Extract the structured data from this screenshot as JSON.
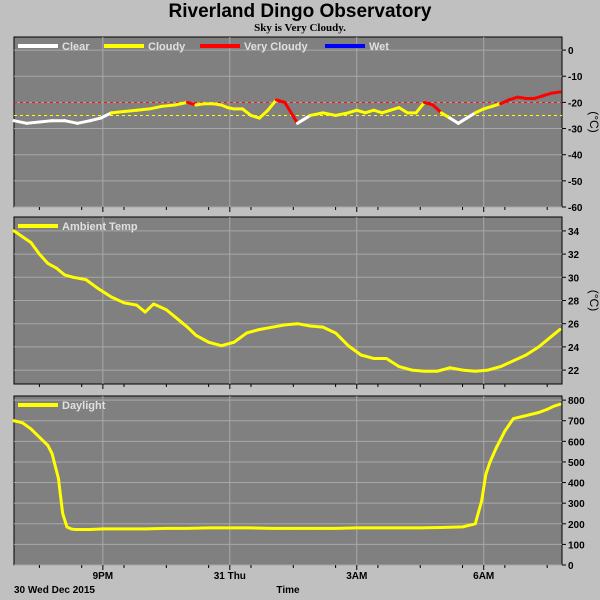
{
  "header": {
    "title": "Riverland Dingo Observatory",
    "subtitle": "Sky is Very Cloudy."
  },
  "footer": {
    "date_label": "30 Wed Dec 2015",
    "time_label": "Time"
  },
  "chart_data": [
    {
      "type": "line",
      "name": "sky",
      "ylabel": "(°C)",
      "ylim": [
        -60,
        5
      ],
      "yticks": [
        0,
        -10,
        -20,
        -30,
        -40,
        -50,
        -60
      ],
      "legend": [
        {
          "label": "Clear",
          "color": "#ffffff"
        },
        {
          "label": "Cloudy",
          "color": "#ffff00"
        },
        {
          "label": "Very Cloudy",
          "color": "#ff0000"
        },
        {
          "label": "Wet",
          "color": "#0000ff"
        }
      ],
      "legend_position": "top-left",
      "thresholds": [
        {
          "value": -20,
          "color": "#ff0000"
        },
        {
          "value": -25,
          "color": "#ffff00"
        }
      ],
      "x": [
        18.9,
        19.2,
        19.5,
        19.8,
        20.1,
        20.4,
        20.7,
        20.95,
        21.2,
        21.5,
        21.8,
        22.1,
        22.4,
        22.7,
        23.0,
        23.2,
        23.4,
        23.6,
        23.8,
        23.95,
        24.1,
        24.3,
        24.5,
        24.7,
        24.9,
        25.1,
        25.3,
        25.6,
        25.9,
        26.2,
        26.5,
        26.8,
        27.0,
        27.2,
        27.4,
        27.6,
        27.8,
        28.0,
        28.2,
        28.4,
        28.6,
        28.8,
        29.0,
        29.2,
        29.4,
        29.6,
        29.8,
        30.0,
        30.2,
        30.4,
        30.6,
        30.8,
        31.0,
        31.2,
        31.4,
        31.6,
        31.8
      ],
      "values": [
        -27,
        -28,
        -27.5,
        -27,
        -27,
        -28,
        -27,
        -26,
        -24,
        -23.5,
        -23,
        -22.5,
        -21.5,
        -21,
        -20,
        -21,
        -20.5,
        -20.5,
        -21,
        -22,
        -22.5,
        -22.5,
        -25,
        -26,
        -23,
        -19,
        -20,
        -28,
        -25,
        -24,
        -25,
        -24,
        -23,
        -24,
        -23,
        -24,
        -23,
        -22,
        -24,
        -24,
        -20,
        -21,
        -24,
        -26,
        -28,
        -26,
        -24,
        -22.5,
        -21.5,
        -20.5,
        -19,
        -18,
        -18.5,
        -18.5,
        -17.5,
        -16.5,
        -16
      ],
      "status": [
        "Clear",
        "Clear",
        "Clear",
        "Clear",
        "Clear",
        "Clear",
        "Clear",
        "Clear",
        "Cloudy",
        "Cloudy",
        "Cloudy",
        "Cloudy",
        "Cloudy",
        "Cloudy",
        "Very Cloudy",
        "Cloudy",
        "Cloudy",
        "Cloudy",
        "Cloudy",
        "Cloudy",
        "Cloudy",
        "Cloudy",
        "Cloudy",
        "Cloudy",
        "Cloudy",
        "Very Cloudy",
        "Very Cloudy",
        "Clear",
        "Cloudy",
        "Cloudy",
        "Cloudy",
        "Cloudy",
        "Cloudy",
        "Cloudy",
        "Cloudy",
        "Cloudy",
        "Cloudy",
        "Cloudy",
        "Cloudy",
        "Cloudy",
        "Very Cloudy",
        "Very Cloudy",
        "Cloudy",
        "Clear",
        "Clear",
        "Clear",
        "Cloudy",
        "Cloudy",
        "Cloudy",
        "Very Cloudy",
        "Very Cloudy",
        "Very Cloudy",
        "Very Cloudy",
        "Very Cloudy",
        "Very Cloudy",
        "Very Cloudy",
        "Very Cloudy"
      ]
    },
    {
      "type": "line",
      "name": "ambient",
      "ylabel": "(°C)",
      "ylim": [
        20.8,
        35.2
      ],
      "yticks": [
        22,
        24,
        26,
        28,
        30,
        32,
        34
      ],
      "legend": [
        {
          "label": "Ambient Temp",
          "color": "#ffff00"
        }
      ],
      "legend_position": "top-left",
      "x": [
        18.9,
        19.1,
        19.3,
        19.5,
        19.7,
        19.9,
        20.1,
        20.3,
        20.6,
        20.9,
        21.2,
        21.5,
        21.8,
        22.0,
        22.2,
        22.5,
        22.8,
        23.0,
        23.2,
        23.5,
        23.8,
        24.1,
        24.4,
        24.7,
        25.0,
        25.3,
        25.6,
        25.9,
        26.2,
        26.5,
        26.8,
        27.1,
        27.4,
        27.7,
        28.0,
        28.3,
        28.6,
        28.9,
        29.2,
        29.5,
        29.8,
        30.1,
        30.4,
        30.7,
        31.0,
        31.3,
        31.6,
        31.8
      ],
      "values": [
        34,
        33.5,
        33,
        32,
        31.2,
        30.8,
        30.2,
        30,
        29.8,
        29,
        28.3,
        27.8,
        27.6,
        27,
        27.7,
        27.2,
        26.3,
        25.7,
        25,
        24.4,
        24.1,
        24.4,
        25.2,
        25.5,
        25.7,
        25.9,
        26,
        25.8,
        25.7,
        25.2,
        24.1,
        23.3,
        23,
        23,
        22.3,
        22,
        21.9,
        21.9,
        22.2,
        22,
        21.9,
        22,
        22.3,
        22.8,
        23.3,
        24,
        24.9,
        25.5
      ]
    },
    {
      "type": "line",
      "name": "daylight",
      "ylabel": "",
      "ylim": [
        0,
        820
      ],
      "yticks": [
        0,
        100,
        200,
        300,
        400,
        500,
        600,
        700,
        800
      ],
      "legend": [
        {
          "label": "Daylight",
          "color": "#ffff00"
        }
      ],
      "legend_position": "top-left",
      "x": [
        18.9,
        19.1,
        19.3,
        19.5,
        19.7,
        19.8,
        19.95,
        20.05,
        20.15,
        20.25,
        20.35,
        20.5,
        20.7,
        21.0,
        21.5,
        22.0,
        22.5,
        23.0,
        23.5,
        24.0,
        24.5,
        25.0,
        25.5,
        26.0,
        26.5,
        27.0,
        27.5,
        28.0,
        28.5,
        29.0,
        29.5,
        29.8,
        29.95,
        30.05,
        30.15,
        30.3,
        30.5,
        30.7,
        30.9,
        31.1,
        31.3,
        31.5,
        31.65,
        31.8
      ],
      "values": [
        700,
        690,
        660,
        620,
        580,
        540,
        420,
        250,
        185,
        175,
        172,
        172,
        172,
        175,
        175,
        175,
        178,
        178,
        180,
        180,
        180,
        178,
        178,
        178,
        178,
        180,
        180,
        180,
        180,
        182,
        185,
        200,
        310,
        440,
        500,
        570,
        650,
        710,
        720,
        730,
        740,
        755,
        770,
        780
      ]
    }
  ],
  "x_axis": {
    "xlim": [
      18.9,
      31.85
    ],
    "ticks": [
      {
        "value": 21,
        "label": "9PM"
      },
      {
        "value": 24,
        "label": "31 Thu"
      },
      {
        "value": 27,
        "label": "3AM"
      },
      {
        "value": 30,
        "label": "6AM"
      }
    ],
    "minor_ticks": [
      19.5,
      20.5,
      21.5,
      22.5,
      23.5,
      24.5,
      25.5,
      26.5,
      27.5,
      28.5,
      29.5,
      30.5,
      31.5
    ]
  },
  "colors": {
    "plot_bg": "#808080",
    "page_bg": "#c0c0c0",
    "grid": "#a8a8a8"
  }
}
